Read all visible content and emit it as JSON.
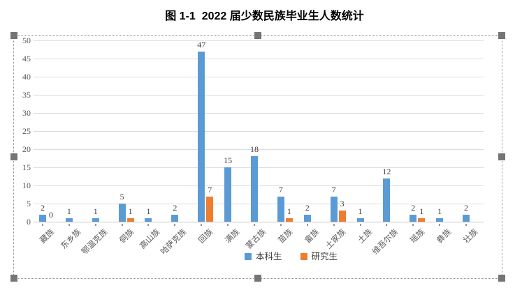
{
  "chart_data": {
    "type": "bar",
    "title": "图 1-1  2022 届少数民族毕业生人数统计",
    "categories": [
      "藏族",
      "东乡族",
      "鄂温克族",
      "侗族",
      "高山族",
      "哈萨克族",
      "回族",
      "满族",
      "蒙古族",
      "苗族",
      "畲族",
      "土家族",
      "土族",
      "维吾尔族",
      "瑶族",
      "彝族",
      "壮族"
    ],
    "series": [
      {
        "name": "本科生",
        "color": "#5B9BD5",
        "values": [
          2,
          1,
          1,
          5,
          1,
          2,
          47,
          15,
          18,
          7,
          2,
          7,
          1,
          12,
          2,
          1,
          2
        ]
      },
      {
        "name": "研究生",
        "color": "#ED7D31",
        "values": [
          0,
          null,
          null,
          1,
          null,
          null,
          7,
          null,
          null,
          1,
          null,
          3,
          null,
          null,
          1,
          null,
          null
        ]
      }
    ],
    "ylim": [
      0,
      50
    ],
    "yticks": [
      0,
      5,
      10,
      15,
      20,
      25,
      30,
      35,
      40,
      45,
      50
    ],
    "grid": true,
    "data_labels": true,
    "legend_position": "bottom",
    "colors": {
      "gridline": "#dcdcdc",
      "axis_text": "#595959",
      "data_label_text": "#3f3f3f",
      "selection_handle": "#757575"
    }
  }
}
